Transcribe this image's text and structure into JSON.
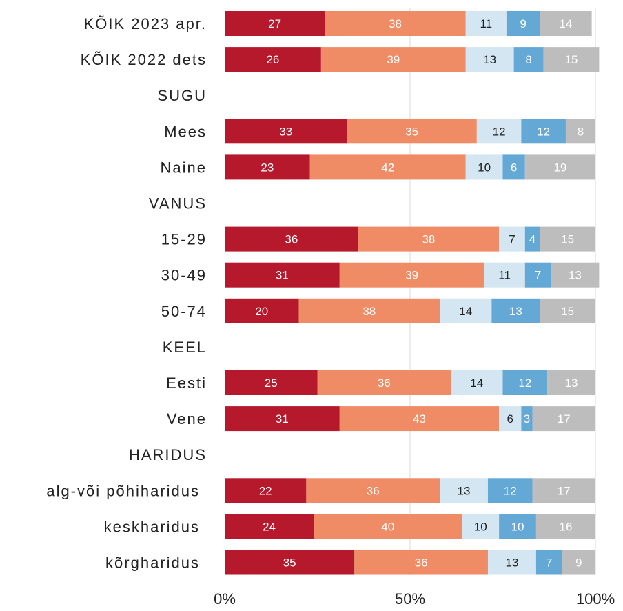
{
  "chart_data": {
    "type": "bar",
    "orientation": "horizontal",
    "stacked": true,
    "xlim": [
      0,
      100
    ],
    "x_ticks": [
      "0%",
      "50%",
      "100%"
    ],
    "grid": true,
    "categories": [
      "KÕIK 2023 apr.",
      "KÕIK 2022 dets",
      "SUGU",
      "Mees",
      "Naine",
      "VANUS",
      "15-29",
      "30-49",
      "50-74",
      "KEEL",
      "Eesti",
      "Vene",
      "HARIDUS",
      "alg-või põhiharidus",
      "keskharidus",
      "kõrgharidus"
    ],
    "series": [
      {
        "color": "#b5192b",
        "label_color": "#ffffff",
        "values": [
          27,
          26,
          null,
          33,
          23,
          null,
          36,
          31,
          20,
          null,
          25,
          31,
          null,
          22,
          24,
          35
        ]
      },
      {
        "color": "#ef8b65",
        "label_color": "#ffffff",
        "values": [
          38,
          39,
          null,
          35,
          42,
          null,
          38,
          39,
          38,
          null,
          36,
          43,
          null,
          36,
          40,
          36
        ]
      },
      {
        "color": "#d3e6f1",
        "label_color": "#222222",
        "values": [
          11,
          13,
          null,
          12,
          10,
          null,
          7,
          11,
          14,
          null,
          14,
          6,
          null,
          13,
          10,
          13
        ]
      },
      {
        "color": "#64a8d6",
        "label_color": "#ffffff",
        "values": [
          9,
          8,
          null,
          12,
          6,
          null,
          4,
          7,
          13,
          null,
          12,
          3,
          null,
          12,
          10,
          7
        ]
      },
      {
        "color": "#bdbdbd",
        "label_color": "#ffffff",
        "values": [
          14,
          15,
          null,
          8,
          19,
          null,
          15,
          13,
          15,
          null,
          13,
          17,
          null,
          17,
          16,
          9
        ]
      }
    ]
  }
}
